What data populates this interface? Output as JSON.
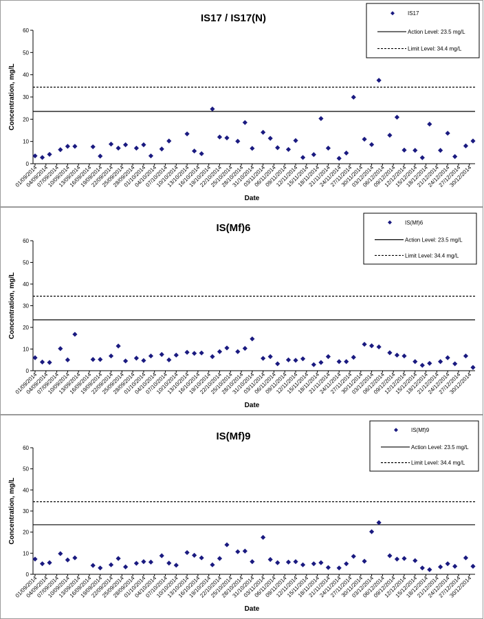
{
  "chart_data": [
    {
      "type": "scatter",
      "title": "IS17 / IS17(N)",
      "xlabel": "Date",
      "ylabel": "Concentration, mg/L",
      "ylim": [
        0,
        60
      ],
      "yticks": [
        0,
        10,
        20,
        30,
        40,
        50,
        60
      ],
      "xlim": [
        "01/09/2014",
        "31/12/2014"
      ],
      "x_tick_labels": [
        "01/09/2014",
        "04/09/2014",
        "07/09/2014",
        "10/09/2014",
        "13/09/2014",
        "16/09/2014",
        "19/09/2014",
        "22/09/2014",
        "25/09/2014",
        "28/09/2014",
        "01/10/2014",
        "04/10/2014",
        "07/10/2014",
        "10/10/2014",
        "13/10/2014",
        "16/10/2014",
        "19/10/2014",
        "22/10/2014",
        "25/10/2014",
        "28/10/2014",
        "31/10/2014",
        "03/11/2014",
        "06/11/2014",
        "09/11/2014",
        "12/11/2014",
        "15/11/2014",
        "18/11/2014",
        "21/11/2014",
        "24/11/2014",
        "27/11/2014",
        "30/11/2014",
        "03/12/2014",
        "06/12/2014",
        "09/12/2014",
        "12/12/2014",
        "15/12/2014",
        "18/12/2014",
        "21/12/2014",
        "24/12/2014",
        "27/12/2014",
        "30/12/2014"
      ],
      "series": [
        {
          "name": "IS17",
          "color": "#1a1a80",
          "marker": "diamond",
          "points": [
            [
              "01/09/2014",
              3.5
            ],
            [
              "03/09/2014",
              2.8
            ],
            [
              "05/09/2014",
              4.2
            ],
            [
              "08/09/2014",
              6.3
            ],
            [
              "10/09/2014",
              7.8
            ],
            [
              "12/09/2014",
              7.8
            ],
            [
              "17/09/2014",
              7.6
            ],
            [
              "19/09/2014",
              3.4
            ],
            [
              "22/09/2014",
              8.8
            ],
            [
              "24/09/2014",
              7.0
            ],
            [
              "26/09/2014",
              8.5
            ],
            [
              "29/09/2014",
              7.0
            ],
            [
              "01/10/2014",
              8.5
            ],
            [
              "03/10/2014",
              3.5
            ],
            [
              "06/10/2014",
              6.6
            ],
            [
              "08/10/2014",
              10.2
            ],
            [
              "13/10/2014",
              13.4
            ],
            [
              "15/10/2014",
              5.7
            ],
            [
              "17/10/2014",
              4.5
            ],
            [
              "20/10/2014",
              24.6
            ],
            [
              "22/10/2014",
              12.0
            ],
            [
              "24/10/2014",
              11.6
            ],
            [
              "27/10/2014",
              10.1
            ],
            [
              "29/10/2014",
              18.5
            ],
            [
              "31/10/2014",
              6.9
            ],
            [
              "03/11/2014",
              14.1
            ],
            [
              "05/11/2014",
              11.4
            ],
            [
              "07/11/2014",
              7.2
            ],
            [
              "10/11/2014",
              6.4
            ],
            [
              "12/11/2014",
              10.4
            ],
            [
              "14/11/2014",
              2.8
            ],
            [
              "17/11/2014",
              4.1
            ],
            [
              "19/11/2014",
              20.3
            ],
            [
              "21/11/2014",
              7.0
            ],
            [
              "24/11/2014",
              2.4
            ],
            [
              "26/11/2014",
              4.8
            ],
            [
              "28/11/2014",
              29.9
            ],
            [
              "01/12/2014",
              11.0
            ],
            [
              "03/12/2014",
              8.6
            ],
            [
              "05/12/2014",
              37.5
            ],
            [
              "08/12/2014",
              12.8
            ],
            [
              "10/12/2014",
              20.9
            ],
            [
              "12/12/2014",
              6.1
            ],
            [
              "15/12/2014",
              6.0
            ],
            [
              "17/12/2014",
              2.7
            ],
            [
              "19/12/2014",
              17.8
            ],
            [
              "22/12/2014",
              6.0
            ],
            [
              "24/12/2014",
              13.7
            ],
            [
              "26/12/2014",
              3.2
            ],
            [
              "29/12/2014",
              8.0
            ],
            [
              "31/12/2014",
              10.2
            ]
          ]
        }
      ],
      "lines": [
        {
          "name": "Action Level: 23.5 mg/L",
          "value": 23.5,
          "style": "solid"
        },
        {
          "name": "Limit Level: 34.4 mg/L",
          "value": 34.4,
          "style": "dashed"
        }
      ],
      "legend": "top-right",
      "grid": false
    },
    {
      "type": "scatter",
      "title": "IS(Mf)6",
      "xlabel": "Date",
      "ylabel": "Concentration, mg/L",
      "ylim": [
        0,
        60
      ],
      "yticks": [
        0,
        10,
        20,
        30,
        40,
        50,
        60
      ],
      "xlim": [
        "01/09/2014",
        "31/12/2014"
      ],
      "x_tick_labels": [
        "01/09/2014",
        "04/09/2014",
        "07/09/2014",
        "10/09/2014",
        "13/09/2014",
        "16/09/2014",
        "19/09/2014",
        "22/09/2014",
        "25/09/2014",
        "28/09/2014",
        "01/10/2014",
        "04/10/2014",
        "07/10/2014",
        "10/10/2014",
        "13/10/2014",
        "16/10/2014",
        "19/10/2014",
        "22/10/2014",
        "25/10/2014",
        "28/10/2014",
        "31/10/2014",
        "03/11/2014",
        "06/11/2014",
        "09/11/2014",
        "12/11/2014",
        "15/11/2014",
        "18/11/2014",
        "21/11/2014",
        "24/11/2014",
        "27/11/2014",
        "30/11/2014",
        "03/12/2014",
        "06/12/2014",
        "09/12/2014",
        "12/12/2014",
        "15/12/2014",
        "18/12/2014",
        "21/12/2014",
        "24/12/2014",
        "27/12/2014",
        "30/12/2014"
      ],
      "series": [
        {
          "name": "IS(Mf)6",
          "color": "#1a1a80",
          "marker": "diamond",
          "points": [
            [
              "01/09/2014",
              6.0
            ],
            [
              "03/09/2014",
              4.0
            ],
            [
              "05/09/2014",
              3.8
            ],
            [
              "08/09/2014",
              10.2
            ],
            [
              "10/09/2014",
              5.0
            ],
            [
              "12/09/2014",
              16.8
            ],
            [
              "17/09/2014",
              5.2
            ],
            [
              "19/09/2014",
              5.2
            ],
            [
              "22/09/2014",
              6.8
            ],
            [
              "24/09/2014",
              11.4
            ],
            [
              "26/09/2014",
              4.5
            ],
            [
              "29/09/2014",
              5.8
            ],
            [
              "01/10/2014",
              4.7
            ],
            [
              "03/10/2014",
              6.8
            ],
            [
              "06/10/2014",
              7.5
            ],
            [
              "08/10/2014",
              5.0
            ],
            [
              "10/10/2014",
              7.2
            ],
            [
              "13/10/2014",
              8.5
            ],
            [
              "15/10/2014",
              8.0
            ],
            [
              "17/10/2014",
              8.2
            ],
            [
              "20/10/2014",
              6.5
            ],
            [
              "22/10/2014",
              8.8
            ],
            [
              "24/10/2014",
              10.5
            ],
            [
              "27/10/2014",
              8.8
            ],
            [
              "29/10/2014",
              10.3
            ],
            [
              "31/10/2014",
              14.7
            ],
            [
              "03/11/2014",
              5.7
            ],
            [
              "05/11/2014",
              6.5
            ],
            [
              "07/11/2014",
              3.2
            ],
            [
              "10/11/2014",
              5.0
            ],
            [
              "12/11/2014",
              4.8
            ],
            [
              "14/11/2014",
              5.5
            ],
            [
              "17/11/2014",
              2.8
            ],
            [
              "19/11/2014",
              3.8
            ],
            [
              "21/11/2014",
              6.5
            ],
            [
              "24/11/2014",
              4.2
            ],
            [
              "26/11/2014",
              4.2
            ],
            [
              "28/11/2014",
              6.2
            ],
            [
              "01/12/2014",
              12.2
            ],
            [
              "03/12/2014",
              11.5
            ],
            [
              "05/12/2014",
              11.0
            ],
            [
              "08/12/2014",
              8.3
            ],
            [
              "10/12/2014",
              7.2
            ],
            [
              "12/12/2014",
              6.8
            ],
            [
              "15/12/2014",
              4.2
            ],
            [
              "17/12/2014",
              2.5
            ],
            [
              "19/12/2014",
              3.4
            ],
            [
              "22/12/2014",
              4.2
            ],
            [
              "24/12/2014",
              6.0
            ],
            [
              "26/12/2014",
              3.2
            ],
            [
              "29/12/2014",
              6.8
            ],
            [
              "31/12/2014",
              1.5
            ]
          ]
        }
      ],
      "lines": [
        {
          "name": "Action Level: 23.5 mg/L",
          "value": 23.5,
          "style": "solid"
        },
        {
          "name": "Limit Level: 34.4 mg/L",
          "value": 34.4,
          "style": "dashed"
        }
      ],
      "legend": "top-right",
      "grid": false
    },
    {
      "type": "scatter",
      "title": "IS(Mf)9",
      "xlabel": "Date",
      "ylabel": "Concentration, mg/L",
      "ylim": [
        0,
        60
      ],
      "yticks": [
        0,
        10,
        20,
        30,
        40,
        50,
        60
      ],
      "xlim": [
        "01/09/2014",
        "31/12/2014"
      ],
      "x_tick_labels": [
        "01/09/2014",
        "04/09/2014",
        "07/09/2014",
        "10/09/2014",
        "13/09/2014",
        "16/09/2014",
        "19/09/2014",
        "22/09/2014",
        "25/09/2014",
        "28/09/2014",
        "01/10/2014",
        "04/10/2014",
        "07/10/2014",
        "10/10/2014",
        "13/10/2014",
        "16/10/2014",
        "19/10/2014",
        "22/10/2014",
        "25/10/2014",
        "28/10/2014",
        "31/10/2014",
        "03/11/2014",
        "06/11/2014",
        "09/11/2014",
        "12/11/2014",
        "15/11/2014",
        "18/11/2014",
        "21/11/2014",
        "24/11/2014",
        "27/11/2014",
        "30/11/2014",
        "03/12/2014",
        "06/12/2014",
        "09/12/2014",
        "12/12/2014",
        "15/12/2014",
        "18/12/2014",
        "21/12/2014",
        "24/12/2014",
        "27/12/2014",
        "30/12/2014"
      ],
      "series": [
        {
          "name": "IS(Mf)9",
          "color": "#1a1a80",
          "marker": "diamond",
          "points": [
            [
              "01/09/2014",
              7.2
            ],
            [
              "03/09/2014",
              5.0
            ],
            [
              "05/09/2014",
              5.5
            ],
            [
              "08/09/2014",
              9.8
            ],
            [
              "10/09/2014",
              6.8
            ],
            [
              "12/09/2014",
              7.8
            ],
            [
              "17/09/2014",
              4.2
            ],
            [
              "19/09/2014",
              3.0
            ],
            [
              "22/09/2014",
              4.5
            ],
            [
              "24/09/2014",
              7.5
            ],
            [
              "26/09/2014",
              3.5
            ],
            [
              "29/09/2014",
              5.2
            ],
            [
              "01/10/2014",
              6.0
            ],
            [
              "03/10/2014",
              5.8
            ],
            [
              "06/10/2014",
              8.8
            ],
            [
              "08/10/2014",
              5.3
            ],
            [
              "10/10/2014",
              4.3
            ],
            [
              "13/10/2014",
              10.3
            ],
            [
              "15/10/2014",
              9.0
            ],
            [
              "17/10/2014",
              7.8
            ],
            [
              "20/10/2014",
              4.5
            ],
            [
              "22/10/2014",
              7.5
            ],
            [
              "24/10/2014",
              14.0
            ],
            [
              "27/10/2014",
              10.7
            ],
            [
              "29/10/2014",
              11.0
            ],
            [
              "31/10/2014",
              6.0
            ],
            [
              "03/11/2014",
              17.5
            ],
            [
              "05/11/2014",
              7.0
            ],
            [
              "07/11/2014",
              5.5
            ],
            [
              "10/11/2014",
              5.8
            ],
            [
              "12/11/2014",
              6.0
            ],
            [
              "14/11/2014",
              4.5
            ],
            [
              "17/11/2014",
              5.0
            ],
            [
              "19/11/2014",
              5.5
            ],
            [
              "21/11/2014",
              3.2
            ],
            [
              "24/11/2014",
              3.0
            ],
            [
              "26/11/2014",
              5.0
            ],
            [
              "28/11/2014",
              8.5
            ],
            [
              "01/12/2014",
              6.2
            ],
            [
              "03/12/2014",
              20.2
            ],
            [
              "05/12/2014",
              24.5
            ],
            [
              "08/12/2014",
              8.8
            ],
            [
              "10/12/2014",
              7.2
            ],
            [
              "12/12/2014",
              7.5
            ],
            [
              "15/12/2014",
              6.5
            ],
            [
              "17/12/2014",
              3.0
            ],
            [
              "19/12/2014",
              2.2
            ],
            [
              "22/12/2014",
              3.5
            ],
            [
              "24/12/2014",
              5.0
            ],
            [
              "26/12/2014",
              3.8
            ],
            [
              "29/12/2014",
              7.8
            ],
            [
              "31/12/2014",
              3.8
            ]
          ]
        }
      ],
      "lines": [
        {
          "name": "Action Level: 23.5 mg/L",
          "value": 23.5,
          "style": "solid"
        },
        {
          "name": "Limit Level: 34.4 mg/L",
          "value": 34.4,
          "style": "dashed"
        }
      ],
      "legend": "top-right",
      "grid": false
    }
  ]
}
